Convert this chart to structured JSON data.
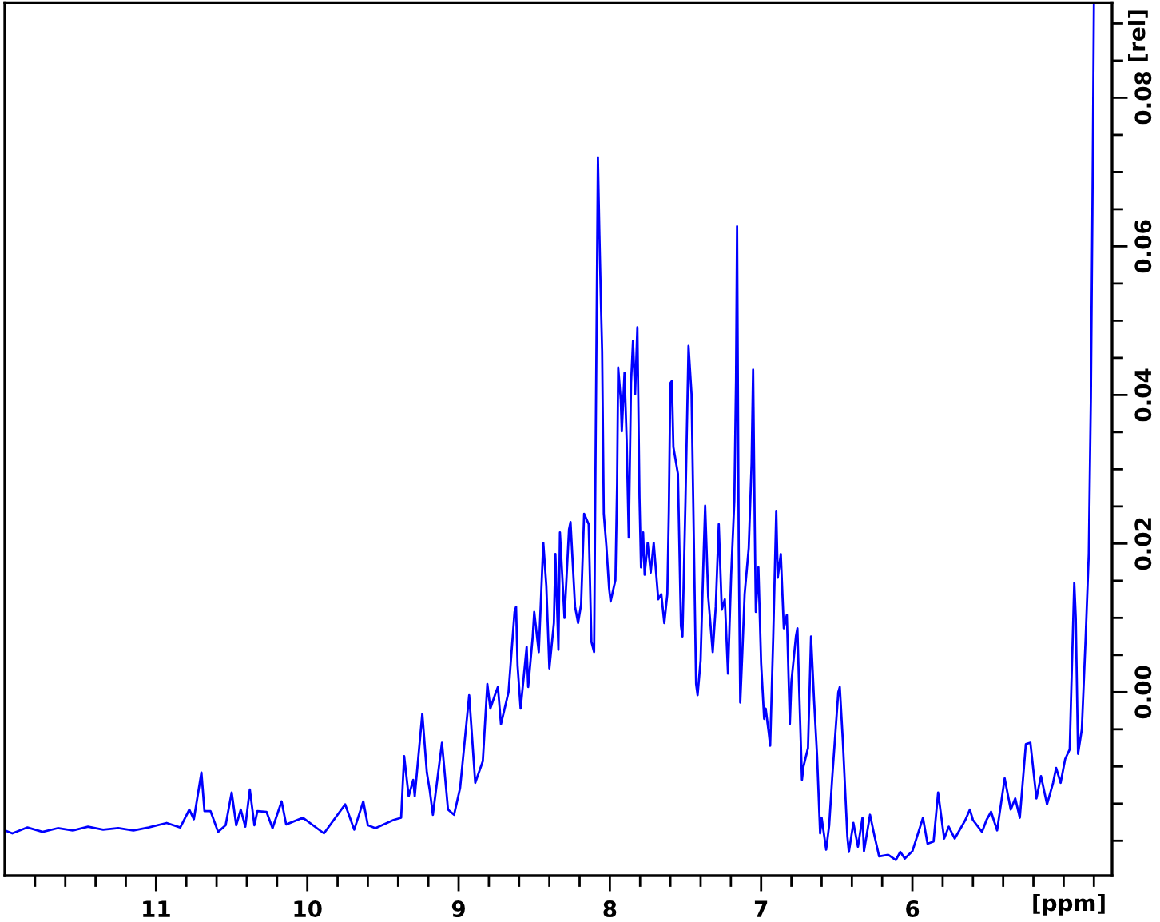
{
  "chart_data": {
    "type": "line",
    "xlabel": "[ppm]",
    "ylabel": "[rel]",
    "x": [
      12.0,
      11.95,
      11.85,
      11.75,
      11.65,
      11.55,
      11.45,
      11.35,
      11.25,
      11.15,
      11.05,
      10.93,
      10.84,
      10.78,
      10.75,
      10.7,
      10.68,
      10.64,
      10.59,
      10.54,
      10.5,
      10.47,
      10.44,
      10.41,
      10.38,
      10.35,
      10.33,
      10.27,
      10.23,
      10.17,
      10.14,
      10.03,
      9.89,
      9.75,
      9.69,
      9.63,
      9.6,
      9.55,
      9.43,
      9.38,
      9.36,
      9.33,
      9.3,
      9.29,
      9.24,
      9.21,
      9.19,
      9.17,
      9.11,
      9.07,
      9.03,
      8.99,
      8.93,
      8.89,
      8.84,
      8.81,
      8.79,
      8.76,
      8.74,
      8.72,
      8.67,
      8.63,
      8.62,
      8.61,
      8.59,
      8.55,
      8.54,
      8.51,
      8.5,
      8.47,
      8.44,
      8.42,
      8.4,
      8.37,
      8.36,
      8.34,
      8.33,
      8.3,
      8.27,
      8.26,
      8.23,
      8.21,
      8.19,
      8.17,
      8.14,
      8.122,
      8.104,
      8.093,
      8.079,
      8.069,
      8.058,
      8.051,
      8.04,
      8.023,
      8.005,
      7.995,
      7.963,
      7.952,
      7.945,
      7.928,
      7.921,
      7.903,
      7.889,
      7.875,
      7.86,
      7.847,
      7.833,
      7.818,
      7.804,
      7.794,
      7.78,
      7.77,
      7.75,
      7.73,
      7.71,
      7.68,
      7.66,
      7.64,
      7.62,
      7.61,
      7.6,
      7.59,
      7.58,
      7.55,
      7.53,
      7.52,
      7.5,
      7.48,
      7.46,
      7.45,
      7.43,
      7.42,
      7.4,
      7.38,
      7.37,
      7.35,
      7.32,
      7.3,
      7.28,
      7.26,
      7.24,
      7.219,
      7.198,
      7.177,
      7.166,
      7.159,
      7.148,
      7.138,
      7.124,
      7.109,
      7.082,
      7.063,
      7.053,
      7.042,
      7.035,
      7.018,
      7.0,
      6.98,
      6.97,
      6.95,
      6.94,
      6.92,
      6.9,
      6.89,
      6.87,
      6.85,
      6.83,
      6.81,
      6.8,
      6.77,
      6.76,
      6.75,
      6.73,
      6.72,
      6.69,
      6.67,
      6.65,
      6.63,
      6.61,
      6.6,
      6.57,
      6.55,
      6.53,
      6.49,
      6.48,
      6.46,
      6.43,
      6.42,
      6.39,
      6.36,
      6.33,
      6.32,
      6.28,
      6.25,
      6.22,
      6.16,
      6.11,
      6.08,
      6.05,
      6.0,
      5.93,
      5.9,
      5.86,
      5.83,
      5.79,
      5.76,
      5.72,
      5.65,
      5.62,
      5.6,
      5.54,
      5.51,
      5.48,
      5.44,
      5.39,
      5.35,
      5.32,
      5.29,
      5.25,
      5.22,
      5.18,
      5.15,
      5.11,
      5.07,
      5.05,
      5.02,
      4.99,
      4.96,
      4.95,
      4.93,
      4.92,
      4.905,
      4.88,
      4.855,
      4.834,
      4.82,
      4.81,
      4.8
    ],
    "series": [
      {
        "color": "#0000ff",
        "values": [
          -0.0186,
          -0.019,
          -0.0182,
          -0.0188,
          -0.0183,
          -0.0186,
          -0.0181,
          -0.0185,
          -0.0183,
          -0.0186,
          -0.0182,
          -0.0176,
          -0.0182,
          -0.0158,
          -0.0171,
          -0.0108,
          -0.016,
          -0.016,
          -0.0188,
          -0.0179,
          -0.0135,
          -0.0179,
          -0.0158,
          -0.0181,
          -0.0131,
          -0.0179,
          -0.016,
          -0.0161,
          -0.0183,
          -0.0147,
          -0.0178,
          -0.0169,
          -0.019,
          -0.0151,
          -0.0185,
          -0.0147,
          -0.0179,
          -0.0183,
          -0.0172,
          -0.0169,
          -0.0086,
          -0.014,
          -0.0118,
          -0.014,
          -0.0029,
          -0.0108,
          -0.0133,
          -0.0165,
          -0.0068,
          -0.0158,
          -0.0165,
          -0.0129,
          -0.0004,
          -0.0122,
          -0.0093,
          0.0011,
          -0.0022,
          -0.0004,
          0.0007,
          -0.0043,
          0.0,
          0.0108,
          0.0115,
          0.0036,
          -0.0022,
          0.0061,
          0.0007,
          0.0075,
          0.0108,
          0.0054,
          0.0201,
          0.0143,
          0.0032,
          0.0093,
          0.0186,
          0.0057,
          0.0215,
          0.01,
          0.0219,
          0.0229,
          0.0115,
          0.0093,
          0.0118,
          0.024,
          0.0226,
          0.0068,
          0.0054,
          0.0355,
          0.072,
          0.0616,
          0.0516,
          0.0459,
          0.024,
          0.0197,
          0.014,
          0.0122,
          0.0151,
          0.028,
          0.0437,
          0.0394,
          0.0351,
          0.043,
          0.034,
          0.0208,
          0.0416,
          0.0473,
          0.0401,
          0.0491,
          0.0262,
          0.0168,
          0.0215,
          0.0158,
          0.0201,
          0.0161,
          0.0201,
          0.0125,
          0.0132,
          0.0093,
          0.0132,
          0.0244,
          0.0416,
          0.0419,
          0.033,
          0.0294,
          0.0089,
          0.0075,
          0.0258,
          0.0466,
          0.0401,
          0.0272,
          0.0011,
          -0.0004,
          0.0043,
          0.0186,
          0.0251,
          0.0129,
          0.0054,
          0.0115,
          0.0226,
          0.0111,
          0.0125,
          0.0025,
          0.0158,
          0.0258,
          0.0419,
          0.0627,
          0.0194,
          -0.0014,
          0.0054,
          0.0132,
          0.0194,
          0.0308,
          0.0434,
          0.0222,
          0.0108,
          0.0168,
          0.0039,
          -0.0036,
          -0.0022,
          -0.0054,
          -0.0072,
          0.0075,
          0.0244,
          0.0154,
          0.0186,
          0.0086,
          0.0104,
          -0.0043,
          0.0014,
          0.0075,
          0.0086,
          0.0014,
          -0.0118,
          -0.01,
          -0.0075,
          0.0075,
          -0.0011,
          -0.0086,
          -0.019,
          -0.0169,
          -0.0212,
          -0.0179,
          -0.0115,
          0.0,
          0.0007,
          -0.0065,
          -0.0194,
          -0.0215,
          -0.0176,
          -0.0208,
          -0.0169,
          -0.0214,
          -0.0165,
          -0.0194,
          -0.0221,
          -0.0219,
          -0.0226,
          -0.0215,
          -0.0224,
          -0.0214,
          -0.0169,
          -0.0204,
          -0.0201,
          -0.0135,
          -0.0197,
          -0.0181,
          -0.0197,
          -0.0172,
          -0.0158,
          -0.0172,
          -0.0188,
          -0.0172,
          -0.0161,
          -0.0186,
          -0.0116,
          -0.0158,
          -0.0143,
          -0.0169,
          -0.007,
          -0.0068,
          -0.0143,
          -0.0113,
          -0.0151,
          -0.0122,
          -0.0102,
          -0.0122,
          -0.009,
          -0.0077,
          0.0001,
          0.0147,
          0.01,
          -0.0083,
          -0.005,
          0.0072,
          0.0186,
          0.0398,
          0.0646,
          0.0928
        ]
      }
    ],
    "xlim": [
      12.0,
      4.68
    ],
    "ylim": [
      -0.0247,
      0.0928
    ],
    "xticks": [
      {
        "value": 11.8,
        "label": null
      },
      {
        "value": 11.6,
        "label": null
      },
      {
        "value": 11.4,
        "label": null
      },
      {
        "value": 11.2,
        "label": null
      },
      11,
      {
        "value": 10.8,
        "label": null
      },
      {
        "value": 10.6,
        "label": null
      },
      {
        "value": 10.4,
        "label": null
      },
      {
        "value": 10.2,
        "label": null
      },
      10,
      {
        "value": 9.8,
        "label": null
      },
      {
        "value": 9.6,
        "label": null
      },
      {
        "value": 9.4,
        "label": null
      },
      {
        "value": 9.2,
        "label": null
      },
      9,
      {
        "value": 8.8,
        "label": null
      },
      {
        "value": 8.6,
        "label": null
      },
      {
        "value": 8.4,
        "label": null
      },
      {
        "value": 8.2,
        "label": null
      },
      8,
      {
        "value": 7.8,
        "label": null
      },
      {
        "value": 7.6,
        "label": null
      },
      {
        "value": 7.4,
        "label": null
      },
      {
        "value": 7.2,
        "label": null
      },
      7,
      {
        "value": 6.8,
        "label": null
      },
      {
        "value": 6.6,
        "label": null
      },
      {
        "value": 6.4,
        "label": null
      },
      {
        "value": 6.2,
        "label": null
      },
      6,
      {
        "value": 5.8,
        "label": null
      },
      {
        "value": 5.6,
        "label": null
      },
      {
        "value": 5.4,
        "label": null
      },
      {
        "value": 5.2,
        "label": null
      },
      {
        "value": 5.0,
        "label": null
      },
      {
        "value": 4.8,
        "label": null
      }
    ],
    "yticks": [
      {
        "value": -0.02,
        "label": null
      },
      {
        "value": -0.015,
        "label": null
      },
      {
        "value": -0.01,
        "label": null
      },
      {
        "value": -0.005,
        "label": null
      },
      {
        "value": 0,
        "label": "0.00"
      },
      {
        "value": 0.005,
        "label": null
      },
      {
        "value": 0.01,
        "label": null
      },
      {
        "value": 0.015,
        "label": null
      },
      {
        "value": 0.02,
        "label": "0.02"
      },
      {
        "value": 0.025,
        "label": null
      },
      {
        "value": 0.03,
        "label": null
      },
      {
        "value": 0.035,
        "label": null
      },
      {
        "value": 0.04,
        "label": "0.04"
      },
      {
        "value": 0.045,
        "label": null
      },
      {
        "value": 0.05,
        "label": null
      },
      {
        "value": 0.055,
        "label": null
      },
      {
        "value": 0.06,
        "label": "0.06"
      },
      {
        "value": 0.065,
        "label": null
      },
      {
        "value": 0.07,
        "label": null
      },
      {
        "value": 0.075,
        "label": null
      },
      {
        "value": 0.08,
        "label": "0.08"
      },
      {
        "value": 0.085,
        "label": null
      },
      {
        "value": 0.09,
        "label": null
      }
    ]
  }
}
